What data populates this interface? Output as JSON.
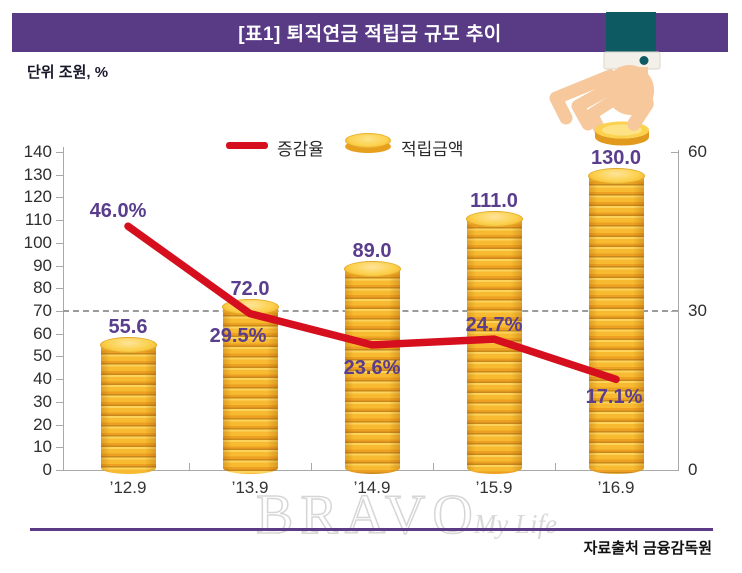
{
  "header": {
    "title": "[표1] 퇴직연금 적립금 규모 추이"
  },
  "unit_label": "단위 조원, %",
  "legend": {
    "line_label": "증감율",
    "coin_label": "적립금액"
  },
  "chart_data": {
    "type": "combo",
    "categories": [
      "’12.9",
      "’13.9",
      "’14.9",
      "’15.9",
      "’16.9"
    ],
    "series": [
      {
        "name": "적립금액",
        "type": "bar",
        "axis": "left",
        "unit": "조원",
        "values": [
          55.6,
          72.0,
          89.0,
          111.0,
          130.0
        ],
        "labels": [
          "55.6",
          "72.0",
          "89.0",
          "111.0",
          "130.0"
        ]
      },
      {
        "name": "증감율",
        "type": "line",
        "axis": "right",
        "unit": "%",
        "values": [
          46.0,
          29.5,
          23.6,
          24.7,
          17.1
        ],
        "labels": [
          "46.0%",
          "29.5%",
          "23.6%",
          "24.7%",
          "17.1%"
        ]
      }
    ],
    "left_axis": {
      "min": 0,
      "max": 140,
      "step": 10
    },
    "right_axis": {
      "min": 0,
      "max": 60,
      "ticks": [
        60,
        30,
        0
      ]
    },
    "reference_line": {
      "left_value": 70,
      "right_value": 30,
      "style": "dashed"
    },
    "legend_position": "top",
    "grid": "off"
  },
  "icons": {
    "hand": "hand-dropping-coin-illustration",
    "bar": "gold-coin-stack",
    "legend_marker": "gold-coin"
  },
  "watermark": {
    "brand": "BRAVO",
    "script": "My Life"
  },
  "footer": {
    "source": "자료출처 금융감독원"
  },
  "colors": {
    "banner_purple": "#583a85",
    "label_purple": "#5a3d8c",
    "line_red": "#d60f1e",
    "coin_gold": "#f8ba30",
    "coin_dark": "#c9881b",
    "coin_light": "#fcd14e",
    "sleeve_teal": "#0e5a62",
    "skin": "#f6c89c",
    "axis_gray": "#a9a9a9"
  }
}
